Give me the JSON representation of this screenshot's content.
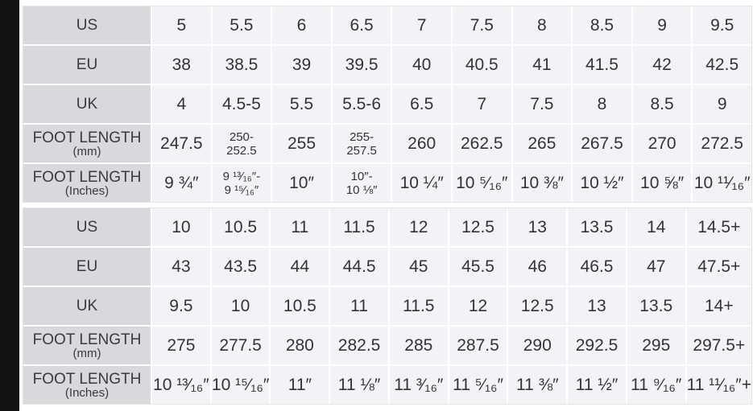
{
  "tables": [
    {
      "rows": [
        {
          "label": "US",
          "cells": [
            "5",
            "5.5",
            "6",
            "6.5",
            "7",
            "7.5",
            "8",
            "8.5",
            "9",
            "9.5"
          ]
        },
        {
          "label": "EU",
          "cells": [
            "38",
            "38.5",
            "39",
            "39.5",
            "40",
            "40.5",
            "41",
            "41.5",
            "42",
            "42.5"
          ]
        },
        {
          "label": "UK",
          "cells": [
            "4",
            "4.5-5",
            "5.5",
            "5.5-6",
            "6.5",
            "7",
            "7.5",
            "8",
            "8.5",
            "9"
          ]
        },
        {
          "label": "FOOT LENGTH",
          "unit": "(mm)",
          "cells": [
            "247.5",
            [
              "250-",
              "252.5"
            ],
            "255",
            [
              "255-",
              "257.5"
            ],
            "260",
            "262.5",
            "265",
            "267.5",
            "270",
            "272.5"
          ]
        },
        {
          "label": "FOOT LENGTH",
          "unit": "(Inches)",
          "cells": [
            "9 ¾″",
            [
              "9 ¹³⁄₁₆″-",
              "9 ¹⁵⁄₁₆″"
            ],
            "10″",
            [
              "10″-",
              "10 ⅛″"
            ],
            "10 ¼″",
            "10 ⁵⁄₁₆″",
            "10 ⅜″",
            "10 ½″",
            "10 ⅝″",
            "10 ¹¹⁄₁₆″"
          ]
        }
      ]
    },
    {
      "rows": [
        {
          "label": "US",
          "cells": [
            "10",
            "10.5",
            "11",
            "11.5",
            "12",
            "12.5",
            "13",
            "13.5",
            "14",
            "14.5+"
          ]
        },
        {
          "label": "EU",
          "cells": [
            "43",
            "43.5",
            "44",
            "44.5",
            "45",
            "45.5",
            "46",
            "46.5",
            "47",
            "47.5+"
          ]
        },
        {
          "label": "UK",
          "cells": [
            "9.5",
            "10",
            "10.5",
            "11",
            "11.5",
            "12",
            "12.5",
            "13",
            "13.5",
            "14+"
          ]
        },
        {
          "label": "FOOT LENGTH",
          "unit": "(mm)",
          "cells": [
            "275",
            "277.5",
            "280",
            "282.5",
            "285",
            "287.5",
            "290",
            "292.5",
            "295",
            "297.5+"
          ]
        },
        {
          "label": "FOOT LENGTH",
          "unit": "(Inches)",
          "cells": [
            "10 ¹³⁄₁₆″",
            "10 ¹⁵⁄₁₆″",
            "11″",
            "11 ⅛″",
            "11 ³⁄₁₆″",
            "11 ⁵⁄₁₆″",
            "11 ⅜″",
            "11 ½″",
            "11 ⁹⁄₁₆″",
            "11 ¹¹⁄₁₆″+"
          ]
        }
      ]
    }
  ]
}
